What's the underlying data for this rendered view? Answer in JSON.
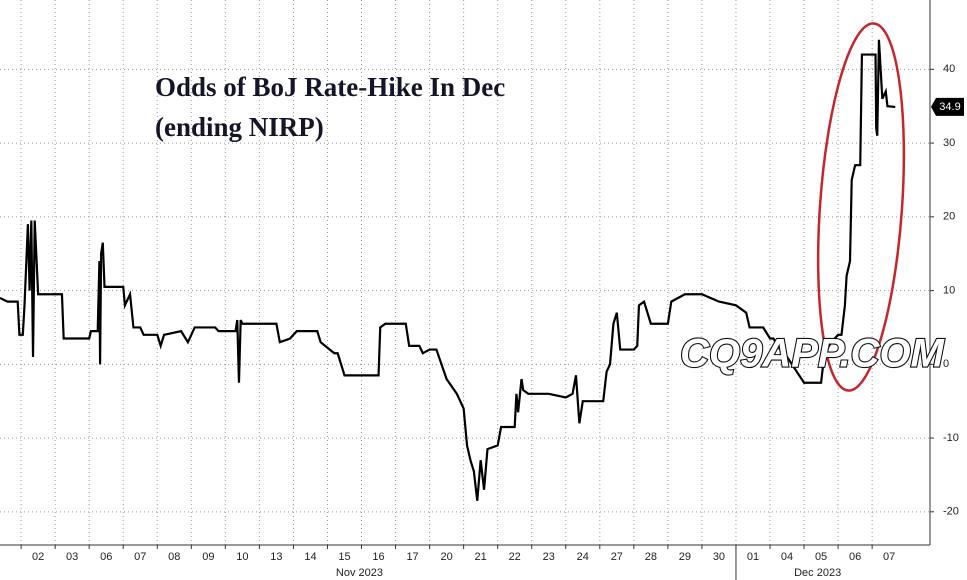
{
  "chart_data": {
    "type": "line",
    "title_lines": [
      "Odds of BoJ Rate-Hike In Dec",
      "(ending NIRP)"
    ],
    "watermark": "CQ9APP.COM",
    "xlim": [
      -1.12,
      26.2
    ],
    "xticks": [
      {
        "value": 0,
        "label": "02"
      },
      {
        "value": 1,
        "label": "03"
      },
      {
        "value": 2,
        "label": "06"
      },
      {
        "value": 3,
        "label": "07"
      },
      {
        "value": 4,
        "label": "08"
      },
      {
        "value": 5,
        "label": "09"
      },
      {
        "value": 6,
        "label": "10"
      },
      {
        "value": 7,
        "label": "13"
      },
      {
        "value": 8,
        "label": "14"
      },
      {
        "value": 9,
        "label": "15"
      },
      {
        "value": 10,
        "label": "16"
      },
      {
        "value": 11,
        "label": "17"
      },
      {
        "value": 12,
        "label": "20"
      },
      {
        "value": 13,
        "label": "21"
      },
      {
        "value": 14,
        "label": "22"
      },
      {
        "value": 15,
        "label": "23"
      },
      {
        "value": 16,
        "label": "24"
      },
      {
        "value": 17,
        "label": "27"
      },
      {
        "value": 18,
        "label": "28"
      },
      {
        "value": 19,
        "label": "29"
      },
      {
        "value": 20,
        "label": "30"
      },
      {
        "value": 21,
        "label": "01"
      },
      {
        "value": 22,
        "label": "04"
      },
      {
        "value": 23,
        "label": "05"
      },
      {
        "value": 24,
        "label": "06"
      },
      {
        "value": 25,
        "label": "07"
      }
    ],
    "month_labels": [
      {
        "value": 9.44,
        "label": "Nov 2023"
      },
      {
        "value": 22.9,
        "label": "Dec 2023"
      }
    ],
    "ylim": [
      -24.5,
      49.4
    ],
    "yticks": [
      -20,
      -10,
      0,
      10,
      20,
      30,
      40
    ],
    "grid": true,
    "color": "#000000",
    "series": [
      {
        "x": [
          -1.12,
          -0.9,
          -0.6,
          -0.55,
          -0.45,
          -0.4,
          -0.3,
          -0.25,
          -0.2,
          -0.15,
          -0.1,
          0.0,
          0.7,
          0.75,
          1.5,
          1.55,
          1.75,
          1.8,
          1.82,
          1.85,
          1.9,
          1.95,
          2.5,
          2.55,
          2.7,
          2.8,
          3.0,
          3.1,
          3.5,
          3.6,
          3.7,
          4.2,
          4.4,
          4.6,
          5.2,
          5.3,
          5.8,
          5.85,
          5.9,
          5.95,
          6.0,
          7.0,
          7.1,
          7.4,
          7.6,
          8.2,
          8.3,
          8.7,
          8.8,
          9.0,
          10.0,
          10.05,
          10.2,
          10.8,
          10.9,
          11.2,
          11.3,
          11.5,
          11.7,
          12.0,
          12.3,
          12.5,
          12.6,
          12.7,
          12.8,
          12.9,
          13.0,
          13.1,
          13.2,
          13.5,
          13.6,
          14.0,
          14.05,
          14.1,
          14.2,
          14.25,
          14.4,
          15.0,
          15.5,
          15.7,
          15.8,
          15.9,
          16.0,
          16.6,
          16.7,
          16.8,
          16.9,
          17.0,
          17.1,
          17.5,
          17.6,
          17.65,
          17.8,
          18.0,
          18.5,
          18.6,
          19.0,
          19.5,
          20.0,
          20.5,
          20.8,
          20.9,
          21.3,
          21.5,
          21.6,
          21.8,
          22.0,
          22.5,
          23.0,
          23.1,
          23.3,
          23.5,
          23.6,
          23.7,
          23.75,
          23.85,
          23.9,
          24.0,
          24.15,
          24.2,
          24.6,
          24.62,
          24.65,
          24.7,
          24.8,
          24.9,
          24.95,
          25.18
        ],
        "values": [
          9,
          8.5,
          8.5,
          4,
          4,
          8,
          19,
          10,
          19.5,
          1,
          19.5,
          9.5,
          9.5,
          3.5,
          3.5,
          4.5,
          4.5,
          14,
          0,
          15,
          16.5,
          10.5,
          10.5,
          8,
          9.5,
          5,
          5,
          4,
          4,
          2.5,
          4,
          4.5,
          3,
          5,
          5,
          4.5,
          4.5,
          6,
          -2.5,
          6,
          5.5,
          5.5,
          3,
          3.5,
          4.5,
          4.5,
          3,
          1.5,
          1.5,
          -1.5,
          -1.5,
          5,
          5.5,
          5.5,
          2.5,
          2.5,
          1.5,
          2,
          2,
          -2,
          -4,
          -6,
          -11,
          -13,
          -14.5,
          -18.5,
          -13,
          -17,
          -11.5,
          -11,
          -8.5,
          -8.5,
          -4,
          -6.5,
          -2,
          -3.5,
          -4,
          -4,
          -4.5,
          -4,
          -1.5,
          -8,
          -5,
          -5,
          -1,
          0,
          5.5,
          7,
          2,
          2,
          2.5,
          8,
          8.5,
          5.5,
          5.5,
          8.5,
          9.5,
          9.5,
          8.5,
          8,
          7,
          5,
          5,
          3.5,
          3.5,
          2,
          1,
          -2.5,
          -2.5,
          1.5,
          3,
          4,
          4,
          8,
          12,
          14,
          25,
          27,
          27,
          42,
          42,
          32,
          31,
          44,
          36,
          37,
          35,
          34.9
        ]
      }
    ]
  }
}
